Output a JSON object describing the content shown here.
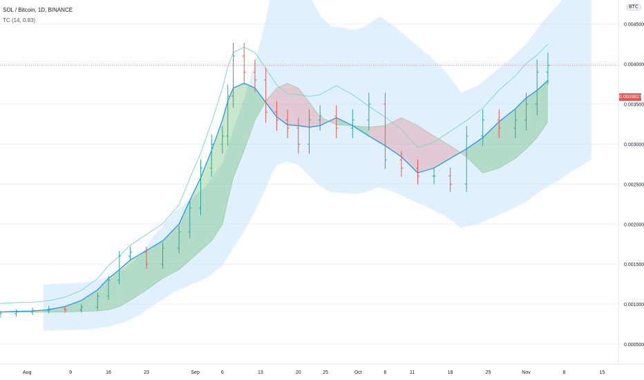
{
  "header": {
    "symbol_line": "SOL / Bitcoin, 1D, BINANCE",
    "indicator_line": "TC (14, 0.83)",
    "currency": "BTC"
  },
  "price_badge": "0.0039827",
  "colors": {
    "up": "#26a69a",
    "down": "#ef5350",
    "cloud_light": "#bbdefb",
    "cloud_green": "#4caf50",
    "cloud_red": "#e57373",
    "mid_line": "#2196f3",
    "upper_band": "#7fd8d0",
    "grid": "#eef0f3",
    "price_line": "#ef5350"
  },
  "chart_data": {
    "type": "candlestick",
    "y_axis": {
      "ticks": [
        "0.0005000",
        "0.0010000",
        "0.0015000",
        "0.0020000",
        "0.0025000",
        "0.0030000",
        "0.0035000",
        "0.0040000",
        "0.0045000"
      ],
      "tick_values": [
        0.0005,
        0.001,
        0.0015,
        0.002,
        0.0025,
        0.003,
        0.0035,
        0.004,
        0.0045
      ],
      "range": [
        0.00025,
        0.0048
      ]
    },
    "x_axis": {
      "labels": [
        "Aug",
        "9",
        "16",
        "23",
        "Sep",
        "6",
        "13",
        "20",
        "25",
        "Oct",
        "6",
        "11",
        "18",
        "25",
        "Nov",
        "8",
        "15"
      ],
      "dates": [
        "2021-08-01",
        "2021-08-09",
        "2021-08-16",
        "2021-08-23",
        "2021-09-01",
        "2021-09-06",
        "2021-09-13",
        "2021-09-20",
        "2021-09-25",
        "2021-10-01",
        "2021-10-06",
        "2021-10-11",
        "2021-10-18",
        "2021-10-25",
        "2021-11-01",
        "2021-11-08",
        "2021-11-15"
      ],
      "range": [
        "2021-07-27",
        "2021-11-18"
      ]
    },
    "last_price": 0.0039827,
    "closes": [
      [
        "2021-07-27",
        0.00088
      ],
      [
        "2021-07-30",
        0.0009
      ],
      [
        "2021-08-02",
        0.00092
      ],
      [
        "2021-08-05",
        0.00094
      ],
      [
        "2021-08-08",
        0.00093
      ],
      [
        "2021-08-11",
        0.00096
      ],
      [
        "2021-08-14",
        0.0011
      ],
      [
        "2021-08-16",
        0.0013
      ],
      [
        "2021-08-18",
        0.0016
      ],
      [
        "2021-08-20",
        0.00165
      ],
      [
        "2021-08-23",
        0.0015
      ],
      [
        "2021-08-26",
        0.0017
      ],
      [
        "2021-08-29",
        0.0019
      ],
      [
        "2021-08-31",
        0.0022
      ],
      [
        "2021-09-02",
        0.0027
      ],
      [
        "2021-09-04",
        0.003
      ],
      [
        "2021-09-06",
        0.0031
      ],
      [
        "2021-09-07",
        0.0036
      ],
      [
        "2021-09-08",
        0.0041
      ],
      [
        "2021-09-10",
        0.0039
      ],
      [
        "2021-09-12",
        0.0038
      ],
      [
        "2021-09-14",
        0.0034
      ],
      [
        "2021-09-16",
        0.0033
      ],
      [
        "2021-09-18",
        0.0032
      ],
      [
        "2021-09-20",
        0.003
      ],
      [
        "2021-09-22",
        0.0033
      ],
      [
        "2021-09-24",
        0.00335
      ],
      [
        "2021-09-27",
        0.0032
      ],
      [
        "2021-09-30",
        0.0033
      ],
      [
        "2021-10-03",
        0.0035
      ],
      [
        "2021-10-06",
        0.0028
      ],
      [
        "2021-10-09",
        0.0027
      ],
      [
        "2021-10-12",
        0.0026
      ],
      [
        "2021-10-15",
        0.0026
      ],
      [
        "2021-10-18",
        0.0025
      ],
      [
        "2021-10-21",
        0.0031
      ],
      [
        "2021-10-24",
        0.0033
      ],
      [
        "2021-10-27",
        0.0032
      ],
      [
        "2021-10-30",
        0.0033
      ],
      [
        "2021-11-01",
        0.0035
      ],
      [
        "2021-11-03",
        0.0039
      ],
      [
        "2021-11-05",
        0.0039827
      ]
    ]
  }
}
